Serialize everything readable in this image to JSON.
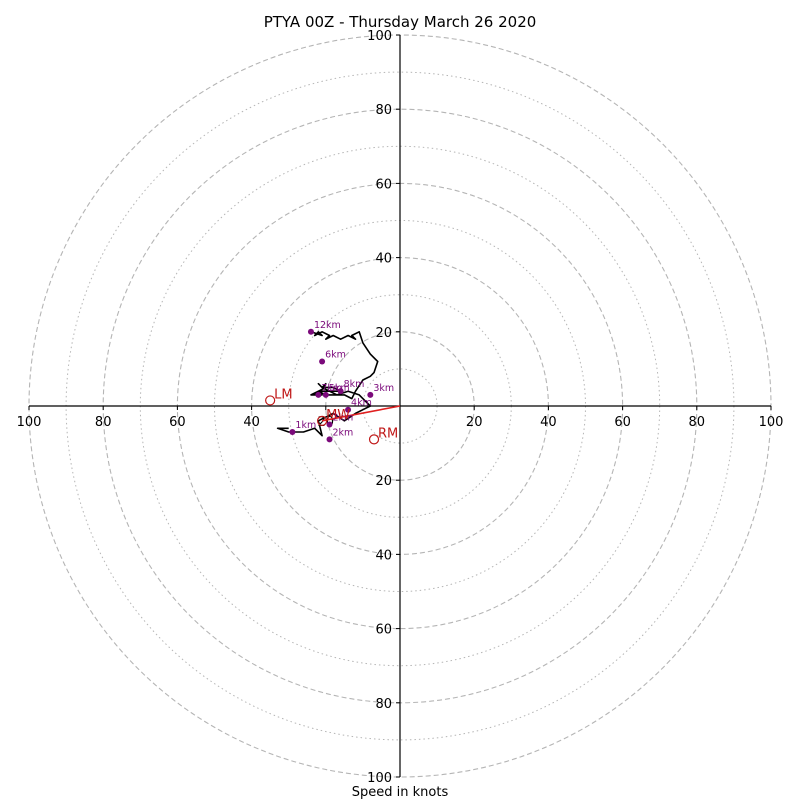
{
  "chart_data": {
    "type": "line",
    "title": "PTYA 00Z - Thursday March 26 2020",
    "xlabel": "Speed in knots",
    "ylabel": "",
    "xlim": [
      -100,
      100
    ],
    "ylim": [
      -100,
      100
    ],
    "rings_major": [
      20,
      40,
      60,
      80,
      100
    ],
    "rings_minor": [
      10,
      30,
      50,
      70,
      90
    ],
    "tick_labels": {
      "right": [
        "20",
        "40",
        "60",
        "80",
        "100"
      ],
      "left": [
        "20",
        "40",
        "60",
        "80",
        "100"
      ],
      "top": [
        "20",
        "40",
        "60",
        "80",
        "100"
      ],
      "bottom": [
        "20",
        "40",
        "60",
        "80",
        "100"
      ]
    },
    "tick_values": [
      20,
      40,
      60,
      80,
      100
    ],
    "colors": {
      "grid": "#b5b5b5",
      "hodograph": "#000000",
      "height_marker": "#7b0a7b",
      "storm_motion": "#c01818",
      "shear_vector": "#e02020"
    },
    "hodograph": {
      "u": [
        -30,
        -33,
        -30,
        -26,
        -23,
        -21,
        -22,
        -18,
        -15,
        -12,
        -10,
        -8,
        -11,
        -14,
        -17,
        -20,
        -22,
        -21,
        -24,
        -22,
        -20,
        -18,
        -16,
        -19,
        -21,
        -22,
        -21,
        -20,
        -22,
        -23,
        -21,
        -19,
        -17,
        -15,
        -13,
        -12,
        -10,
        -8,
        -7,
        -6,
        -8,
        -10,
        -11,
        -13,
        -12,
        -14,
        -16,
        -18,
        -20,
        -19,
        -21,
        -23,
        -22,
        -21,
        -24
      ],
      "v": [
        -6,
        -6,
        -7,
        -7,
        -6,
        -8,
        -4,
        -2,
        -4,
        -2,
        -1,
        0,
        3,
        4,
        3,
        3,
        4,
        3,
        3,
        4,
        5,
        5,
        4,
        4,
        5,
        6,
        5,
        6,
        3,
        3,
        4,
        4,
        3,
        3,
        2,
        4,
        7,
        8,
        9,
        12,
        14,
        17,
        20,
        19,
        18,
        19,
        18,
        19,
        18,
        19,
        20,
        19,
        20,
        19,
        20
      ]
    },
    "height_markers": [
      {
        "label": "1km",
        "u": -29,
        "v": -7
      },
      {
        "label": "2km",
        "u": -19,
        "v": -5
      },
      {
        "label": "2km",
        "u": -19,
        "v": -9
      },
      {
        "label": "3km",
        "u": -8,
        "v": 3
      },
      {
        "label": "4km",
        "u": -14,
        "v": -1
      },
      {
        "label": "5km",
        "u": -20,
        "v": 3
      },
      {
        "label": "6km",
        "u": -21,
        "v": 12
      },
      {
        "label": "7km",
        "u": -22,
        "v": 3
      },
      {
        "label": "8km",
        "u": -16,
        "v": 4
      },
      {
        "label": "12km",
        "u": -24,
        "v": 20
      }
    ],
    "storm_motion": [
      {
        "label": "LM",
        "u": -35,
        "v": 1.5
      },
      {
        "label": "RM",
        "u": -7,
        "v": -9
      },
      {
        "label": "MW",
        "u": -21,
        "v": -4
      }
    ],
    "shear_vector": {
      "u": [
        -21,
        0
      ],
      "v": [
        -4,
        0
      ]
    }
  }
}
